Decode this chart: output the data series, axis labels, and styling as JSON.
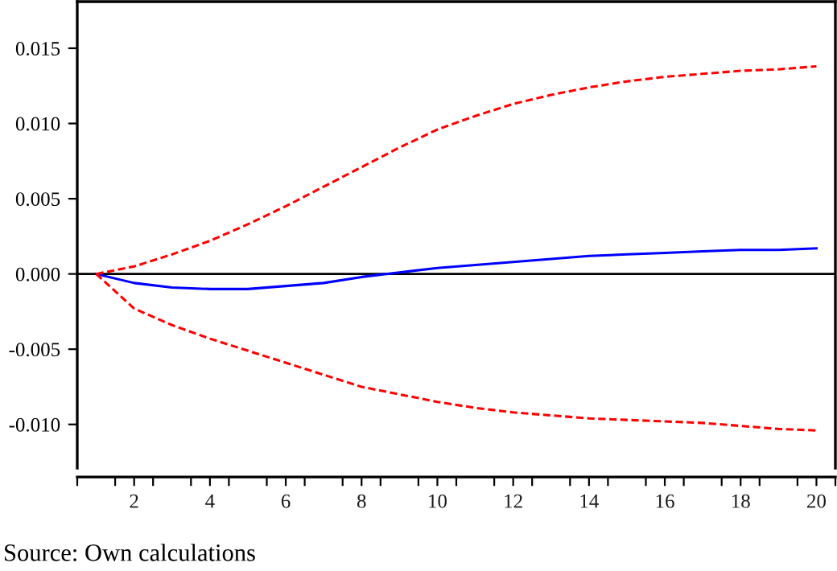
{
  "chart_data": {
    "type": "line",
    "x": [
      1,
      2,
      3,
      4,
      5,
      6,
      7,
      8,
      9,
      10,
      11,
      12,
      13,
      14,
      15,
      16,
      17,
      18,
      19,
      20
    ],
    "series": [
      {
        "color": "#0000ff",
        "line_style": "solid",
        "values": [
          0,
          -0.0006,
          -0.0009,
          -0.001,
          -0.001,
          -0.0008,
          -0.0006,
          -0.0002,
          0.0001,
          0.0004,
          0.0006,
          0.0008,
          0.001,
          0.0012,
          0.0013,
          0.0014,
          0.0015,
          0.0016,
          0.0016,
          0.0017
        ]
      },
      {
        "color": "#ff0000",
        "line_style": "dashed",
        "values": [
          0,
          0.0005,
          0.0013,
          0.0022,
          0.0033,
          0.0045,
          0.0058,
          0.0071,
          0.0084,
          0.0096,
          0.0105,
          0.0113,
          0.0119,
          0.0124,
          0.0128,
          0.0131,
          0.0133,
          0.0135,
          0.0136,
          0.0138
        ]
      },
      {
        "color": "#ff0000",
        "line_style": "dashed",
        "values": [
          0,
          -0.0023,
          -0.0034,
          -0.0043,
          -0.0051,
          -0.0059,
          -0.0067,
          -0.0075,
          -0.008,
          -0.0085,
          -0.0089,
          -0.0092,
          -0.0094,
          -0.0096,
          -0.0097,
          -0.0098,
          -0.0099,
          -0.0101,
          -0.0103,
          -0.0104
        ]
      }
    ],
    "xlim": [
      0.5,
      20.5
    ],
    "xticks": [
      {
        "value": 0.5,
        "label": null
      },
      {
        "value": 1.5,
        "label": null
      },
      2,
      {
        "value": 2.5,
        "label": null
      },
      {
        "value": 3.5,
        "label": null
      },
      4,
      {
        "value": 4.5,
        "label": null
      },
      {
        "value": 5.5,
        "label": null
      },
      6,
      {
        "value": 6.5,
        "label": null
      },
      {
        "value": 7.5,
        "label": null
      },
      8,
      {
        "value": 8.5,
        "label": null
      },
      {
        "value": 9.5,
        "label": null
      },
      10,
      {
        "value": 10.5,
        "label": null
      },
      {
        "value": 11.5,
        "label": null
      },
      12,
      {
        "value": 12.5,
        "label": null
      },
      {
        "value": 13.5,
        "label": null
      },
      14,
      {
        "value": 14.5,
        "label": null
      },
      {
        "value": 15.5,
        "label": null
      },
      16,
      {
        "value": 16.5,
        "label": null
      },
      {
        "value": 17.5,
        "label": null
      },
      18,
      {
        "value": 18.5,
        "label": null
      },
      {
        "value": 19.5,
        "label": null
      },
      20,
      {
        "value": 20.5,
        "label": null
      }
    ],
    "ylim": [
      -0.0129,
      0.0181
    ],
    "yticks": [
      {
        "value": -0.01,
        "label": "-0.010"
      },
      {
        "value": -0.005,
        "label": "-0.005"
      },
      {
        "value": 0,
        "label": "0.000"
      },
      {
        "value": 0.005,
        "label": "0.005"
      },
      {
        "value": 0.01,
        "label": "0.010"
      },
      {
        "value": 0.015,
        "label": "0.015"
      }
    ],
    "ref_lines": [
      {
        "axis": "y",
        "value": 0,
        "color": "#000000"
      }
    ],
    "grid": false,
    "legend": false,
    "marker": "none",
    "annotations": [
      "Source: Own calculations"
    ]
  }
}
